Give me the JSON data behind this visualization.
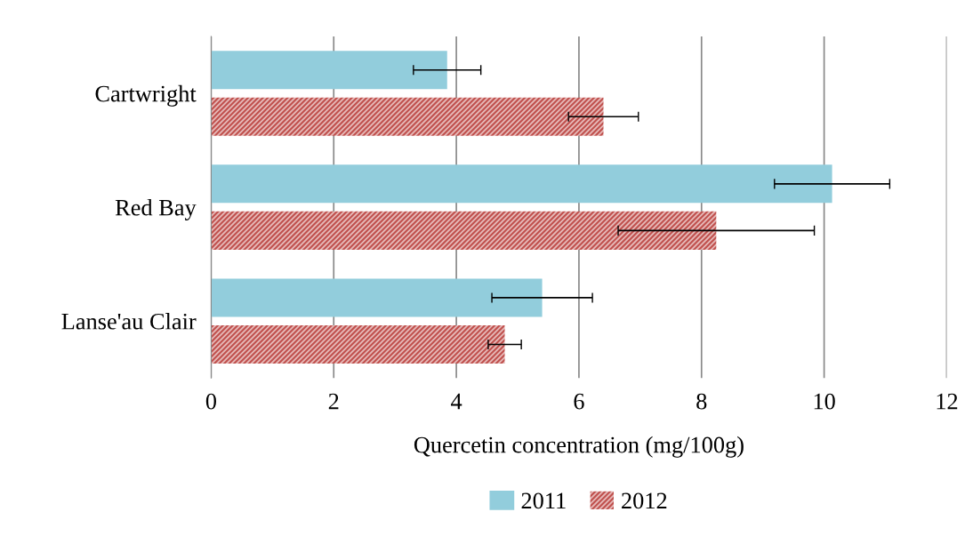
{
  "chart_data": {
    "type": "bar",
    "orientation": "horizontal",
    "xlabel": "Quercetin concentration (mg/100g)",
    "categories": [
      "Cartwright",
      "Red Bay",
      "Lanse'au Clair"
    ],
    "series": [
      {
        "name": "2011",
        "color": "#92cddc",
        "values": [
          3.85,
          10.13,
          5.4
        ],
        "errors": [
          0.55,
          0.94,
          0.82
        ]
      },
      {
        "name": "2012",
        "color": "#c0504d",
        "values": [
          6.4,
          8.24,
          4.79
        ],
        "errors": [
          0.57,
          1.6,
          0.27
        ]
      }
    ],
    "xlim": [
      0,
      12
    ],
    "xticks": [
      0,
      2,
      4,
      6,
      8,
      10,
      12
    ],
    "grid": "x",
    "legend": "bottom"
  }
}
